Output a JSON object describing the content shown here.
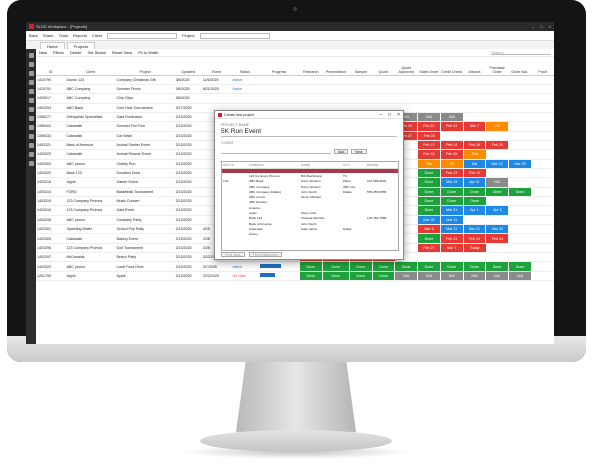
{
  "app": {
    "title": "SLDD Workplace - [Projects]",
    "menu": [
      "Back",
      "Share",
      "Tools",
      "Reports",
      "Client",
      "Project"
    ],
    "tabs": [
      "Home",
      "Projects"
    ],
    "toolbar": [
      "New",
      "Filters",
      "Delete",
      "Set Status",
      "Reset View",
      "Fit to Width"
    ],
    "search_placeholder": "Search"
  },
  "columns": [
    "ID",
    "Client",
    "Project",
    "Updated",
    "Event",
    "Status",
    "Progress",
    "Research",
    "Presentation",
    "Sample",
    "Quote",
    "Quote Approved",
    "Sales Order",
    "Credit Check",
    "Artwork",
    "Purchase Order",
    "Order Ack.",
    "Proof"
  ],
  "rows": [
    {
      "id": "1410790",
      "client": "Doctor 123",
      "project": "Company Christmas Gift",
      "updated": "3/6/2025",
      "event": "11/6/2025",
      "status": "Active",
      "cells": []
    },
    {
      "id": "1410791",
      "client": "ABC Company",
      "project": "Summer Picnic",
      "updated": "3/6/2025",
      "event": "6/21/2025",
      "status": "Active",
      "cells": []
    },
    {
      "id": "1409017",
      "client": "ABC Company",
      "project": "Chip Clips",
      "updated": "3/6/2025",
      "event": "",
      "status": "",
      "cells": []
    },
    {
      "id": "1404254",
      "client": "ABC Bank",
      "project": "Corn Hole Tournament",
      "updated": "2/17/2025",
      "event": "",
      "status": "",
      "cells": []
    },
    {
      "id": "1396377",
      "client": "Orthopedic Specialists",
      "project": "Gala Fundraiser",
      "updated": "2/13/2025",
      "event": "",
      "status": "",
      "cells": [
        {
          "c": 11,
          "t": "N/A",
          "col": "#8a8a8a"
        },
        {
          "c": 12,
          "t": "N/A",
          "col": "#8a8a8a"
        },
        {
          "c": 13,
          "t": "N/A",
          "col": "#8a8a8a"
        }
      ]
    },
    {
      "id": "1396402",
      "client": "Cakewalk",
      "project": "Summer Fun Run",
      "updated": "2/13/2025",
      "event": "",
      "status": "",
      "cells": [
        {
          "c": 11,
          "t": "Feb 20",
          "col": "#e53935"
        },
        {
          "c": 12,
          "t": "Feb 21",
          "col": "#e53935"
        },
        {
          "c": 13,
          "t": "Feb 24",
          "col": "#e53935"
        },
        {
          "c": 14,
          "t": "Mar 7",
          "col": "#e53935"
        },
        {
          "c": 15,
          "t": "Fri",
          "col": "#fb8c00"
        }
      ]
    },
    {
      "id": "1396433",
      "client": "Cakewalk",
      "project": "Car Wash",
      "updated": "2/13/2025",
      "event": "",
      "status": "",
      "cells": [
        {
          "c": 11,
          "t": "Feb 27",
          "col": "#e53935"
        },
        {
          "c": 12,
          "t": "Feb 28",
          "col": "#e53935"
        }
      ]
    },
    {
      "id": "1403321",
      "client": "Bank of America",
      "project": "Animal Shelter Event",
      "updated": "2/13/2025",
      "event": "",
      "status": "",
      "cells": [
        {
          "c": 12,
          "t": "Feb 13",
          "col": "#e53935"
        },
        {
          "c": 13,
          "t": "Feb 14",
          "col": "#e53935"
        },
        {
          "c": 14,
          "t": "Feb 16",
          "col": "#e53935"
        },
        {
          "c": 15,
          "t": "Feb 20",
          "col": "#e53935"
        }
      ]
    },
    {
      "id": "1403322",
      "client": "Cakewalk",
      "project": "Animal Rescue Event",
      "updated": "2/13/2025",
      "event": "",
      "status": "",
      "cells": [
        {
          "c": 12,
          "t": "Feb 18",
          "col": "#e53935"
        },
        {
          "c": 13,
          "t": "Feb 20",
          "col": "#e53935"
        },
        {
          "c": 14,
          "t": "Sun",
          "col": "#fb8c00"
        }
      ]
    },
    {
      "id": "1403303",
      "client": "ABC promo",
      "project": "Charity Run",
      "updated": "2/13/2025",
      "event": "",
      "status": "",
      "cells": [
        {
          "c": 12,
          "t": "Thu",
          "col": "#fb8c00"
        },
        {
          "c": 13,
          "t": "Fri",
          "col": "#fb8c00"
        },
        {
          "c": 14,
          "t": "Sat",
          "col": "#1e88e5"
        },
        {
          "c": 15,
          "t": "Mar 22",
          "col": "#1e88e5"
        },
        {
          "c": 16,
          "t": "Mar 29",
          "col": "#1e88e5"
        }
      ]
    },
    {
      "id": "1403320",
      "client": "Bank 123",
      "project": "Donation Drive",
      "updated": "2/13/2025",
      "event": "",
      "status": "",
      "cells": [
        {
          "c": 12,
          "t": "Done",
          "col": "#1ea33c"
        },
        {
          "c": 13,
          "t": "Feb 13",
          "col": "#e53935"
        },
        {
          "c": 14,
          "t": "Feb 14",
          "col": "#e53935"
        }
      ]
    },
    {
      "id": "1403318",
      "client": "Apple",
      "project": "Gamer Event",
      "updated": "2/13/2025",
      "event": "",
      "status": "",
      "cells": [
        {
          "c": 12,
          "t": "Done",
          "col": "#1ea33c"
        },
        {
          "c": 13,
          "t": "Mar 19",
          "col": "#1e88e5"
        },
        {
          "c": 14,
          "t": "Apr 11",
          "col": "#1e88e5"
        },
        {
          "c": 15,
          "t": "N/A",
          "col": "#8a8a8a"
        }
      ]
    },
    {
      "id": "1403314",
      "client": "FORD",
      "project": "Basketball Tournament",
      "updated": "2/13/2025",
      "event": "",
      "status": "",
      "cells": [
        {
          "c": 12,
          "t": "Done",
          "col": "#1ea33c"
        },
        {
          "c": 13,
          "t": "Done",
          "col": "#1ea33c"
        },
        {
          "c": 14,
          "t": "Done",
          "col": "#1ea33c"
        },
        {
          "c": 15,
          "t": "Done",
          "col": "#1ea33c"
        },
        {
          "c": 16,
          "t": "Done",
          "col": "#1ea33c"
        }
      ]
    },
    {
      "id": "1403319",
      "client": "123 Company Promos",
      "project": "Music Concert",
      "updated": "2/13/2025",
      "event": "",
      "status": "",
      "cells": [
        {
          "c": 12,
          "t": "Done",
          "col": "#1ea33c"
        },
        {
          "c": 13,
          "t": "Done",
          "col": "#1ea33c"
        },
        {
          "c": 14,
          "t": "Done",
          "col": "#1ea33c"
        }
      ]
    },
    {
      "id": "1403316",
      "client": "123 Company Promos",
      "project": "Gala Event",
      "updated": "2/13/2025",
      "event": "",
      "status": "",
      "cells": [
        {
          "c": 12,
          "t": "Done",
          "col": "#1ea33c"
        },
        {
          "c": 13,
          "t": "Mar 31",
          "col": "#1e88e5"
        },
        {
          "c": 14,
          "t": "Apr 1",
          "col": "#1e88e5"
        },
        {
          "c": 15,
          "t": "Apr 3",
          "col": "#1e88e5"
        }
      ]
    },
    {
      "id": "1403298",
      "client": "ABC promo",
      "project": "Company Party",
      "updated": "2/13/2025",
      "event": "",
      "status": "",
      "cells": [
        {
          "c": 12,
          "t": "Mar 20",
          "col": "#1e88e5"
        },
        {
          "c": 13,
          "t": "Mar 21",
          "col": "#1e88e5"
        }
      ]
    },
    {
      "id": "1403301",
      "client": "Sparkling Water",
      "project": "School Pep Rally",
      "updated": "2/13/2025",
      "event": "4/25",
      "status": "",
      "cells": [
        {
          "c": 12,
          "t": "Mar 6",
          "col": "#e53935"
        },
        {
          "c": 13,
          "t": "Mar 11",
          "col": "#1e88e5"
        },
        {
          "c": 14,
          "t": "Mar 21",
          "col": "#1e88e5"
        },
        {
          "c": 15,
          "t": "Mar 23",
          "col": "#1e88e5"
        }
      ]
    },
    {
      "id": "1403305",
      "client": "Cakewalk",
      "project": "Bakery Event",
      "updated": "2/13/2025",
      "event": "2/28",
      "status": "",
      "cells": [
        {
          "c": 12,
          "t": "Done",
          "col": "#1ea33c"
        },
        {
          "c": 13,
          "t": "Feb 11",
          "col": "#e53935"
        },
        {
          "c": 14,
          "t": "Feb 14",
          "col": "#e53935"
        },
        {
          "c": 15,
          "t": "Feb 24",
          "col": "#e53935"
        }
      ]
    },
    {
      "id": "1403295",
      "client": "123 Company Promos",
      "project": "Golf Tournament",
      "updated": "2/13/2025",
      "event": "3/28",
      "status": "",
      "cells": [
        {
          "c": 12,
          "t": "Feb 27",
          "col": "#e53935"
        },
        {
          "c": 13,
          "t": "Mar 7",
          "col": "#e53935"
        },
        {
          "c": 14,
          "t": "Today",
          "col": "#e53935"
        }
      ]
    },
    {
      "id": "1403297",
      "client": "McDonalds",
      "project": "Beach Party",
      "updated": "2/13/2025",
      "event": "3/22/2025",
      "status": "Active",
      "cells": [
        {
          "c": 7,
          "t": "Feb 13",
          "col": "#e53935"
        },
        {
          "c": 8,
          "t": "Feb 18",
          "col": "#e53935"
        },
        {
          "c": 9,
          "t": "Feb 20",
          "col": "#e53935"
        },
        {
          "c": 10,
          "t": "Feb 20",
          "col": "#e53935"
        }
      ]
    },
    {
      "id": "1403322",
      "client": "ABC promo",
      "project": "Local Food Drive",
      "updated": "2/13/2025",
      "event": "3/7/2025",
      "status": "Active",
      "progress": 0.7,
      "cells": [
        {
          "c": 7,
          "t": "Done",
          "col": "#1ea33c"
        },
        {
          "c": 8,
          "t": "Done",
          "col": "#1ea33c"
        },
        {
          "c": 9,
          "t": "Done",
          "col": "#1ea33c"
        },
        {
          "c": 10,
          "t": "Done",
          "col": "#1ea33c"
        },
        {
          "c": 11,
          "t": "Done",
          "col": "#1ea33c"
        },
        {
          "c": 12,
          "t": "Done",
          "col": "#1ea33c"
        },
        {
          "c": 13,
          "t": "Done",
          "col": "#1ea33c"
        },
        {
          "c": 14,
          "t": "Done",
          "col": "#1ea33c"
        },
        {
          "c": 15,
          "t": "Done",
          "col": "#1ea33c"
        },
        {
          "c": 16,
          "t": "Done",
          "col": "#1ea33c"
        }
      ]
    },
    {
      "id": "1261759",
      "client": "Apple",
      "project": "Apple",
      "updated": "2/13/2025",
      "event": "2/22/2025",
      "status": "On Hold",
      "progress": 0.5,
      "cells": [
        {
          "c": 7,
          "t": "Done",
          "col": "#1ea33c"
        },
        {
          "c": 8,
          "t": "Done",
          "col": "#1ea33c"
        },
        {
          "c": 9,
          "t": "Done",
          "col": "#1ea33c"
        },
        {
          "c": 10,
          "t": "Done",
          "col": "#1ea33c"
        },
        {
          "c": 11,
          "t": "N/A",
          "col": "#8a8a8a"
        },
        {
          "c": 12,
          "t": "N/A",
          "col": "#8a8a8a"
        },
        {
          "c": 13,
          "t": "N/A",
          "col": "#8a8a8a"
        },
        {
          "c": 14,
          "t": "N/A",
          "col": "#8a8a8a"
        },
        {
          "c": 15,
          "t": "N/A",
          "col": "#8a8a8a"
        },
        {
          "c": 16,
          "t": "N/A",
          "col": "#8a8a8a"
        }
      ]
    }
  ],
  "dialog": {
    "title": "Create new project",
    "name_label": "PROJECT NAME",
    "name_value": "5K Run Event",
    "client_label": "CLIENT",
    "add_label": "Add",
    "new_label": "New",
    "dd_headers": [
      "ACCT #",
      "COMPANY",
      "NAME",
      "CITY",
      "PHONE"
    ],
    "dd_rows": [
      [
        "",
        "",
        "",
        "",
        ""
      ],
      [
        "",
        "123 Company Promos",
        "Bill Washington",
        "TX",
        ""
      ],
      [
        "123",
        "ABC Bank",
        "Harry Winston",
        "Plano",
        "212-999-9903"
      ],
      [
        "",
        "ABC Company",
        "Harry Winston",
        "ABC City",
        ""
      ],
      [
        "",
        "ABC Company (Dallas)",
        "John Smith",
        "Dallas",
        "555-355-5555"
      ],
      [
        "",
        "ABC promo",
        "Tavon Mitchell",
        "",
        ""
      ],
      [
        "",
        "ABC Roofers",
        "",
        "",
        ""
      ],
      [
        "",
        "Amazon",
        "",
        "",
        ""
      ],
      [
        "",
        "Apple",
        "Steve Jobs",
        "",
        ""
      ],
      [
        "",
        "Bank 123",
        "Chelsea Michelle",
        "",
        "123-456-7889"
      ],
      [
        "",
        "Bank of America",
        "John Smith",
        "",
        ""
      ],
      [
        "",
        "Cakewalk",
        "Katie Jahns",
        "Dallas",
        ""
      ],
      [
        "",
        "Chevy",
        "",
        "",
        ""
      ]
    ],
    "find_label": "Find Jobs",
    "find_cats_label": "Find Categories"
  }
}
